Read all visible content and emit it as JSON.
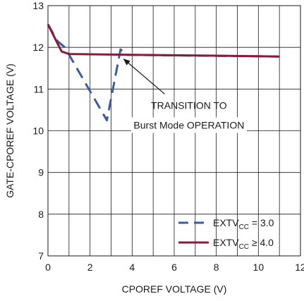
{
  "chart_data": {
    "type": "line",
    "title": "",
    "xlabel": "CPOREF VOLTAGE (V)",
    "ylabel": "GATE-CPOREF VOLTAGE (V)",
    "xlim": [
      0,
      12
    ],
    "ylim": [
      7,
      13
    ],
    "xticks": [
      "0",
      "2",
      "4",
      "6",
      "8",
      "10",
      "12"
    ],
    "yticks": [
      "7",
      "8",
      "9",
      "10",
      "11",
      "12",
      "13"
    ],
    "grid": true,
    "legend_position": "bottom-right",
    "series": [
      {
        "name_main": "EXTV",
        "name_sub": "CC",
        "name_rest": " = 3.0",
        "style": "dashed",
        "color": "#3a5ba8",
        "points": [
          [
            0,
            12.55
          ],
          [
            0.45,
            12.15
          ],
          [
            0.8,
            12.0
          ],
          [
            1.2,
            11.65
          ],
          [
            2.8,
            10.25
          ],
          [
            3.45,
            11.95
          ],
          [
            3.7,
            11.82
          ],
          [
            11,
            11.78
          ]
        ]
      },
      {
        "name_main": "EXTV",
        "name_sub": "CC",
        "name_rest": " ≥ 4.0",
        "style": "solid",
        "color": "#8b1a3a",
        "points": [
          [
            0,
            12.55
          ],
          [
            0.4,
            12.15
          ],
          [
            0.65,
            11.9
          ],
          [
            1.0,
            11.84
          ],
          [
            4,
            11.82
          ],
          [
            8,
            11.8
          ],
          [
            11,
            11.78
          ]
        ]
      }
    ],
    "annotations": [
      {
        "lines": [
          "TRANSITION TO",
          "Burst Mode OPERATION"
        ],
        "arrow_from": [
          5.55,
          10.88
        ],
        "arrow_to": [
          3.6,
          11.72
        ]
      }
    ]
  }
}
